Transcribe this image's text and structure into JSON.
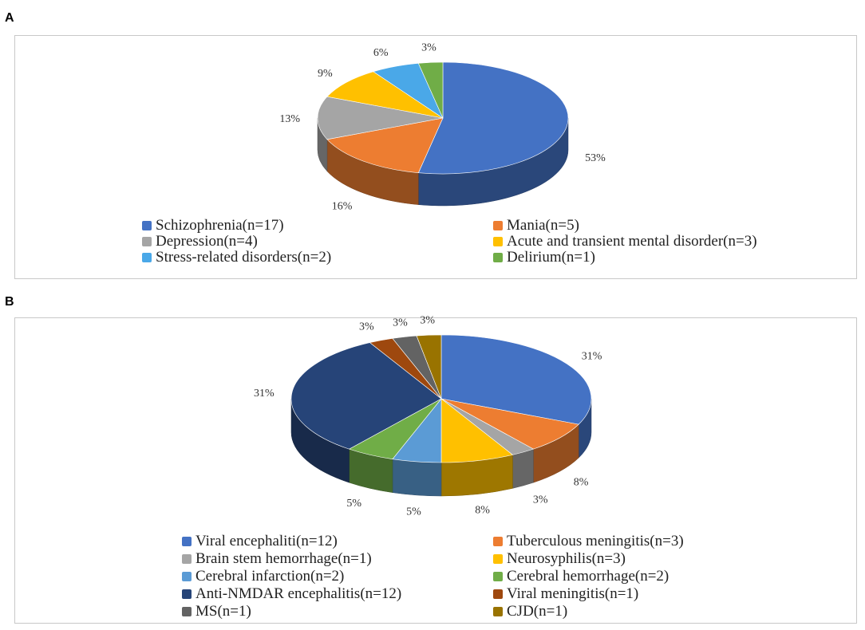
{
  "panels": [
    {
      "letter": "A"
    },
    {
      "letter": "B"
    }
  ],
  "chart_data": [
    {
      "type": "pie",
      "title": "",
      "slices": [
        {
          "label": "Schizophrenia(n=17)",
          "value": 17,
          "percent_label": "53%",
          "color": "#4472C4"
        },
        {
          "label": "Mania(n=5)",
          "value": 5,
          "percent_label": "16%",
          "color": "#ED7D31"
        },
        {
          "label": "Depression(n=4)",
          "value": 4,
          "percent_label": "13%",
          "color": "#A5A5A5"
        },
        {
          "label": "Acute and transient mental disorder(n=3)",
          "value": 3,
          "percent_label": "9%",
          "color": "#FFC000"
        },
        {
          "label": "Stress-related disorders(n=2)",
          "value": 2,
          "percent_label": "6%",
          "color": "#4AA8E8"
        },
        {
          "label": "Delirium(n=1)",
          "value": 1,
          "percent_label": "3%",
          "color": "#70AD47"
        }
      ],
      "legend_position": "bottom"
    },
    {
      "type": "pie",
      "title": "",
      "slices": [
        {
          "label": "Viral encephaliti(n=12)",
          "value": 12,
          "percent_label": "31%",
          "color": "#4472C4"
        },
        {
          "label": "Tuberculous meningitis(n=3)",
          "value": 3,
          "percent_label": "8%",
          "color": "#ED7D31"
        },
        {
          "label": "Brain stem hemorrhage(n=1)",
          "value": 1,
          "percent_label": "3%",
          "color": "#A5A5A5"
        },
        {
          "label": "Neurosyphilis(n=3)",
          "value": 3,
          "percent_label": "8%",
          "color": "#FFC000"
        },
        {
          "label": "Cerebral infarction(n=2)",
          "value": 2,
          "percent_label": "5%",
          "color": "#5B9BD5"
        },
        {
          "label": "Cerebral hemorrhage(n=2)",
          "value": 2,
          "percent_label": "5%",
          "color": "#70AD47"
        },
        {
          "label": "Anti-NMDAR encephalitis(n=12)",
          "value": 12,
          "percent_label": "31%",
          "color": "#264478"
        },
        {
          "label": "Viral meningitis(n=1)",
          "value": 1,
          "percent_label": "3%",
          "color": "#9E480E"
        },
        {
          "label": "MS(n=1)",
          "value": 1,
          "percent_label": "3%",
          "color": "#636363"
        },
        {
          "label": "CJD(n=1)",
          "value": 1,
          "percent_label": "3%",
          "color": "#997300"
        }
      ],
      "legend_position": "bottom"
    }
  ]
}
